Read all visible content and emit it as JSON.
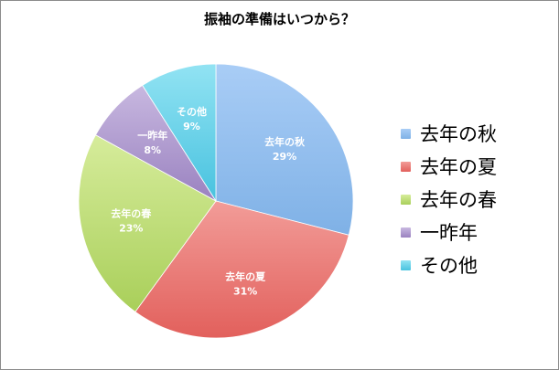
{
  "chart_data": {
    "type": "pie",
    "title": "振袖の準備はいつから？",
    "slices": [
      {
        "label": "去年の秋",
        "value": 29,
        "value_label": "29%",
        "color": "#7fb1e6",
        "color_light": "#a9cdf6"
      },
      {
        "label": "去年の夏",
        "value": 31,
        "value_label": "31%",
        "color": "#e2605c",
        "color_light": "#f29c98"
      },
      {
        "label": "去年の春",
        "value": 23,
        "value_label": "23%",
        "color": "#a9cf5a",
        "color_light": "#d6ec9b"
      },
      {
        "label": "一昨年",
        "value": 8,
        "value_label": "8%",
        "color": "#9a82c0",
        "color_light": "#c8b8e0"
      },
      {
        "label": "その他",
        "value": 9,
        "value_label": "9%",
        "color": "#48c2df",
        "color_light": "#92e3f3"
      }
    ],
    "legend_position": "right",
    "start_angle": "12 o'clock, clockwise"
  }
}
